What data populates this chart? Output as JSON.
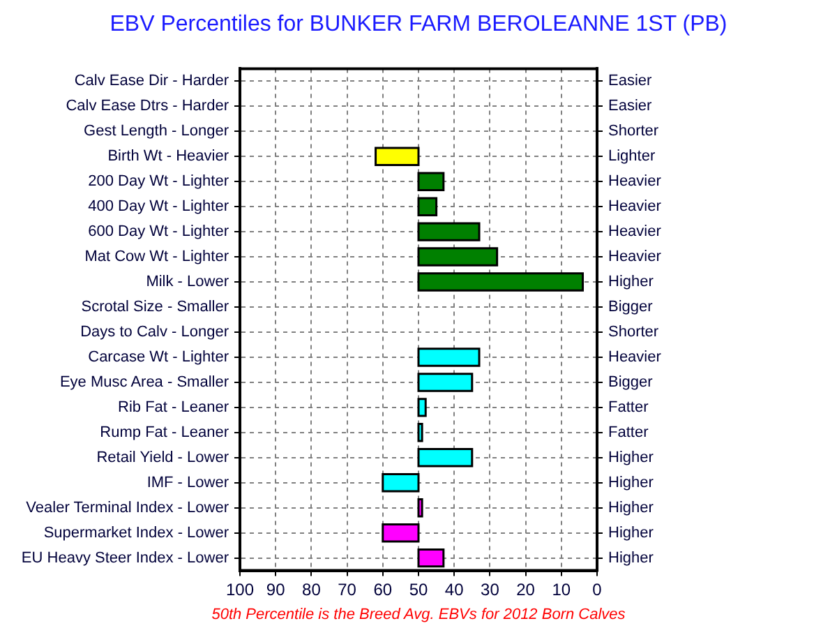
{
  "chart_data": {
    "type": "bar",
    "orientation": "horizontal",
    "title": "EBV Percentiles for BUNKER FARM BEROLEANNE 1ST (PB)",
    "categories": [
      "Calv Ease Dir - Harder",
      "Calv Ease Dtrs - Harder",
      "Gest Length - Longer",
      "Birth Wt - Heavier",
      "200 Day Wt - Lighter",
      "400 Day Wt - Lighter",
      "600 Day Wt - Lighter",
      "Mat Cow Wt - Lighter",
      "Milk - Lower",
      "Scrotal Size - Smaller",
      "Days to Calv - Longer",
      "Carcase Wt - Lighter",
      "Eye Musc Area - Smaller",
      "Rib Fat - Leaner",
      "Rump Fat - Leaner",
      "Retail Yield - Lower",
      "IMF - Lower",
      "Vealer Terminal Index - Lower",
      "Supermarket Index - Lower",
      "EU Heavy Steer Index - Lower"
    ],
    "y2_categories": [
      "Easier",
      "Easier",
      "Shorter",
      "Lighter",
      "Heavier",
      "Heavier",
      "Heavier",
      "Heavier",
      "Higher",
      "Bigger",
      "Shorter",
      "Heavier",
      "Bigger",
      "Fatter",
      "Fatter",
      "Higher",
      "Higher",
      "Higher",
      "Higher",
      "Higher"
    ],
    "base": [
      null,
      null,
      null,
      50,
      50,
      50,
      50,
      50,
      50,
      null,
      null,
      50,
      50,
      50,
      50,
      50,
      50,
      50,
      50,
      50
    ],
    "values": [
      null,
      null,
      null,
      12,
      -7,
      -5,
      -17,
      -22,
      -46,
      null,
      null,
      -17,
      -15,
      -2,
      -1,
      -15,
      10,
      -1,
      10,
      -7
    ],
    "colors": [
      null,
      null,
      null,
      "#ffff00",
      "#008000",
      "#008000",
      "#008000",
      "#008000",
      "#008000",
      null,
      null,
      "#00ffff",
      "#00ffff",
      "#00ffff",
      "#00ffff",
      "#00ffff",
      "#00ffff",
      "#ff00ff",
      "#ff00ff",
      "#ff00ff"
    ],
    "xlim": [
      100,
      0
    ],
    "xticks": [
      100,
      90,
      80,
      70,
      60,
      50,
      40,
      30,
      20,
      10,
      0
    ],
    "grid": true,
    "annotations": [
      "50th Percentile is the Breed Avg. EBVs for 2012 Born Calves"
    ]
  }
}
